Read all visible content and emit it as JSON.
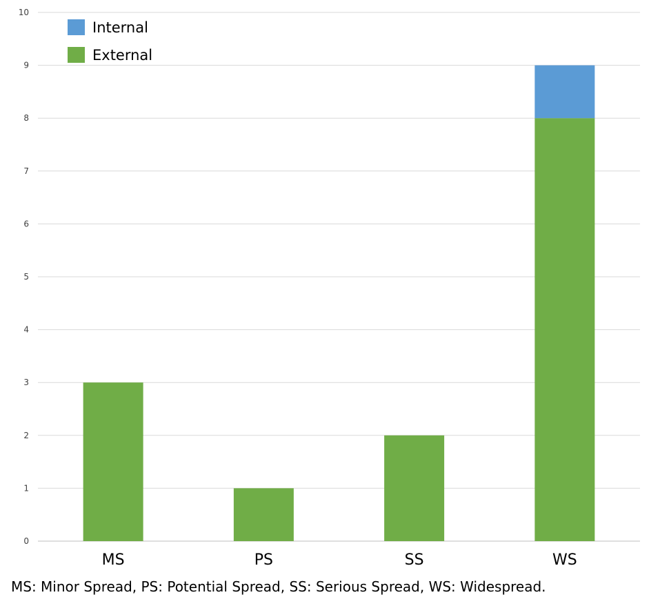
{
  "chart_data": {
    "type": "bar",
    "stacked": true,
    "categories": [
      "MS",
      "PS",
      "SS",
      "WS"
    ],
    "series": [
      {
        "name": "External",
        "color": "#70ad47",
        "values": [
          3,
          1,
          2,
          8
        ]
      },
      {
        "name": "Internal",
        "color": "#5b9bd5",
        "values": [
          0,
          0,
          0,
          1
        ]
      }
    ],
    "ylim": [
      0,
      10
    ],
    "yticks": [
      "0",
      "1",
      "2",
      "3",
      "4",
      "5",
      "6",
      "7",
      "8",
      "9",
      "10"
    ],
    "grid": true,
    "legend": {
      "placement": "top-left",
      "entries": [
        {
          "label": "Internal",
          "color": "#5b9bd5"
        },
        {
          "label": "External",
          "color": "#70ad47"
        }
      ]
    },
    "xlabel": "",
    "ylabel": "",
    "title": ""
  },
  "caption": "MS: Minor Spread, PS: Potential Spread, SS: Serious Spread, WS: Widespread."
}
